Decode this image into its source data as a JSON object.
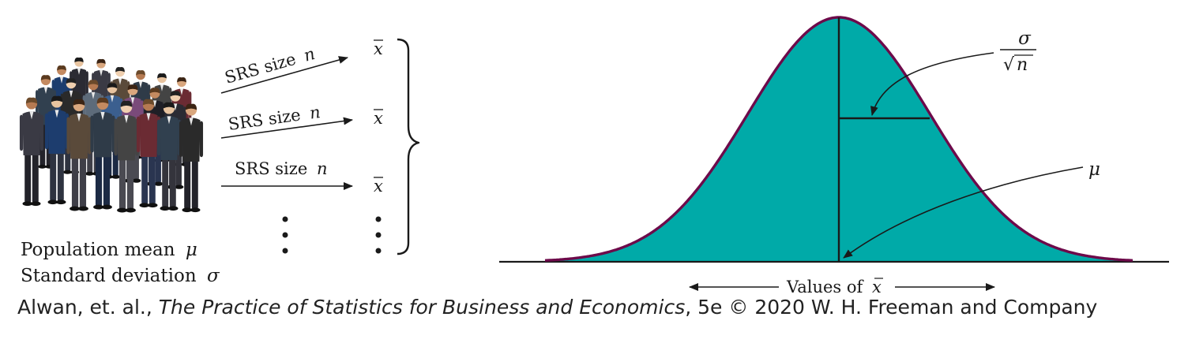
{
  "colors": {
    "curve_fill": "#00aaa8",
    "curve_outline": "#6d0a4a",
    "ink": "#1a1a1a"
  },
  "population": {
    "mean_label": "Population mean",
    "mean_symbol": "μ",
    "sd_label": "Standard deviation",
    "sd_symbol": "σ",
    "illustration_icon": "crowd-of-people-illustration"
  },
  "samples": [
    {
      "label": "SRS size",
      "symbol": "n",
      "result": "x"
    },
    {
      "label": "SRS size",
      "symbol": "n",
      "result": "x"
    },
    {
      "label": "SRS size",
      "symbol": "n",
      "result": "x"
    }
  ],
  "continuation": "⋮",
  "distribution": {
    "sd_numerator": "σ",
    "sd_radical": "√",
    "sd_radicand": "n",
    "mean_label": "μ",
    "axis_label": "Values of",
    "axis_symbol": "x"
  },
  "caption": {
    "authors": "Alwan, et. al., ",
    "title": "The Practice of Statistics for Business and Economics",
    "edition": ", 5e © 2020 W. H. Freeman and Company"
  }
}
